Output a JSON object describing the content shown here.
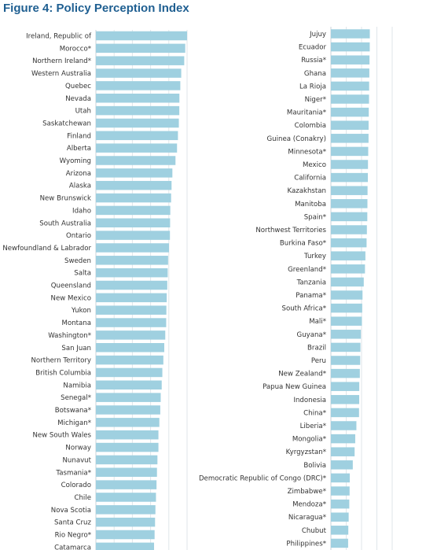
{
  "title": "Figure 4: Policy Perception Index",
  "colors": {
    "title": "#1f5f91",
    "bar": "#9fd0e0",
    "grid": "#dfe6ea"
  },
  "chart_data": {
    "type": "bar",
    "orientation": "horizontal",
    "title": "Figure 4: Policy Perception Index",
    "grid": true,
    "xlim": [
      0,
      100
    ],
    "panels": [
      {
        "categories": [
          "Ireland, Republic of",
          "Morocco*",
          "Northern Ireland*",
          "Western Australia",
          "Quebec",
          "Nevada",
          "Utah",
          "Saskatchewan",
          "Finland",
          "Alberta",
          "Wyoming",
          "Arizona",
          "Alaska",
          "New Brunswick",
          "Idaho",
          "South Australia",
          "Ontario",
          "Newfoundland & Labrador",
          "Sweden",
          "Salta",
          "Queensland",
          "New Mexico",
          "Yukon",
          "Montana",
          "Washington*",
          "San Juan",
          "Northern Territory",
          "British Columbia",
          "Namibia",
          "Senegal*",
          "Botswana*",
          "Michigan*",
          "New South Wales",
          "Norway",
          "Nunavut",
          "Tasmania*",
          "Colorado",
          "Chile",
          "Nova Scotia",
          "Santa Cruz",
          "Rio Negro*",
          "Catamarca"
        ],
        "values": [
          100.0,
          98.0,
          96.9,
          93.6,
          92.6,
          91.6,
          91.5,
          91.0,
          90.0,
          89.0,
          87.3,
          83.9,
          83.0,
          82.5,
          81.6,
          81.4,
          81.2,
          80.2,
          79.2,
          78.8,
          78.3,
          77.7,
          77.3,
          77.1,
          76.1,
          75.0,
          74.0,
          72.9,
          72.2,
          71.1,
          70.6,
          69.6,
          68.6,
          68.6,
          67.5,
          67.0,
          66.5,
          65.9,
          65.3,
          64.9,
          64.4,
          63.8
        ]
      },
      {
        "categories": [
          "Jujuy",
          "Ecuador",
          "Russia*",
          "Ghana",
          "La Rioja",
          "Niger*",
          "Mauritania*",
          "Colombia",
          "Guinea (Conakry)",
          "Minnesota*",
          "Mexico",
          "California",
          "Kazakhstan",
          "Manitoba",
          "Spain*",
          "Northwest Territories",
          "Burkina Faso*",
          "Turkey",
          "Greenland*",
          "Tanzania",
          "Panama*",
          "South Africa*",
          "Mali*",
          "Guyana*",
          "Brazil",
          "Peru",
          "New Zealand*",
          "Papua New Guinea",
          "Indonesia",
          "China*",
          "Liberia*",
          "Mongolia*",
          "Kyrgyzstan*",
          "Bolivia",
          "Democratic Republic of Congo (DRC)*",
          "Zimbabwe*",
          "Mendoza*",
          "Nicaragua*",
          "Chubut",
          "Philippines*"
        ],
        "values": [
          63.5,
          63.4,
          63.0,
          62.7,
          62.4,
          62.2,
          61.8,
          61.5,
          61.4,
          60.9,
          60.5,
          60.3,
          59.8,
          59.6,
          59.4,
          58.7,
          58.2,
          56.3,
          55.6,
          53.6,
          51.6,
          51.1,
          50.6,
          48.9,
          48.2,
          47.8,
          47.2,
          46.3,
          46.2,
          45.9,
          41.6,
          39.7,
          38.7,
          35.7,
          30.8,
          30.5,
          30.0,
          29.0,
          28.4,
          28.1
        ]
      }
    ]
  }
}
